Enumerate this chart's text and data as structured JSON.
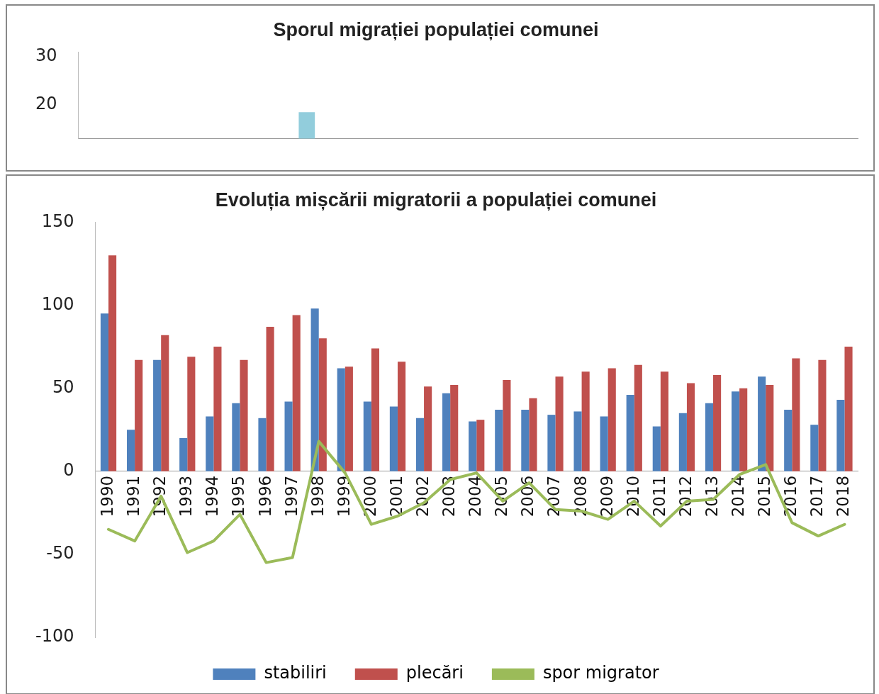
{
  "chart_data": [
    {
      "type": "bar",
      "title": "Sporul migrației populației comunei",
      "categories": [
        null,
        null,
        null,
        null,
        null,
        null,
        null,
        null,
        null,
        null,
        null,
        null,
        null,
        null,
        null,
        null,
        null,
        null,
        null,
        null,
        null,
        null,
        null,
        null,
        null,
        null,
        null,
        null,
        null
      ],
      "series": [
        {
          "color": "#92cddc",
          "values": [
            null,
            null,
            null,
            null,
            null,
            null,
            null,
            null,
            18.5,
            null,
            null,
            null,
            null,
            null,
            null,
            null,
            null,
            null,
            null,
            null,
            null,
            null,
            null,
            null,
            null,
            null,
            null,
            null,
            null
          ]
        }
      ],
      "ylim": [
        13,
        31
      ],
      "yticks": [
        20,
        30
      ],
      "tick_labels": "y",
      "legend": false,
      "grid": false
    },
    {
      "type": "bar",
      "title": "Evoluția mișcării migratorii a populației comunei",
      "categories": [
        "1990",
        "1991",
        "1992",
        "1993",
        "1994",
        "1995",
        "1996",
        "1997",
        "1998",
        "1999",
        "2000",
        "2001",
        "2002",
        "2003",
        "2004",
        "2005",
        "2006",
        "2007",
        "2008",
        "2009",
        "2010",
        "2011",
        "2012",
        "2013",
        "2014",
        "2015",
        "2016",
        "2017",
        "2018"
      ],
      "series": [
        {
          "name": "stabiliri",
          "color": "#4f81bd",
          "values": [
            95,
            25,
            67,
            20,
            33,
            41,
            32,
            42,
            98,
            62,
            42,
            39,
            32,
            47,
            30,
            37,
            37,
            34,
            36,
            33,
            46,
            27,
            35,
            41,
            48,
            57,
            37,
            28,
            43
          ]
        },
        {
          "name": "plecări",
          "color": "#c0504d",
          "values": [
            130,
            67,
            82,
            69,
            75,
            67,
            87,
            94,
            80,
            63,
            74,
            66,
            51,
            52,
            31,
            55,
            44,
            57,
            60,
            62,
            64,
            60,
            53,
            58,
            50,
            52,
            68,
            67,
            75
          ]
        },
        {
          "name": "spor migrator",
          "type": "line",
          "color": "#9bbb59",
          "values": [
            -35,
            -42,
            -15,
            -49,
            -42,
            -26,
            -55,
            -52,
            18,
            -1,
            -32,
            -27,
            -19,
            -5,
            -1,
            -18,
            -7,
            -23,
            -24,
            -29,
            -18,
            -33,
            -18,
            -17,
            -2,
            4,
            -31,
            -39,
            -32
          ]
        }
      ],
      "ylim": [
        -100,
        150
      ],
      "yticks": [
        -100,
        -50,
        0,
        50,
        100,
        150
      ],
      "legend": "bottom",
      "grid": false,
      "marker": "none"
    }
  ]
}
